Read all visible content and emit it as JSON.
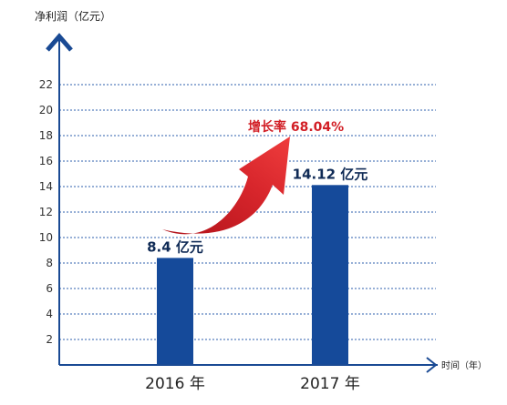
{
  "colors": {
    "axis": "#1a4a94",
    "bar": "#154a9a",
    "grid": "#2e5fae",
    "growth": "#d21f26",
    "label": "#0f2a55"
  },
  "chart_data": {
    "type": "bar",
    "ylabel": "净利润（亿元）",
    "xlabel": "时间（年）",
    "ylim": [
      0,
      24
    ],
    "yticks": [
      2,
      4,
      6,
      8,
      10,
      12,
      14,
      16,
      18,
      20,
      22
    ],
    "grid": true,
    "categories": [
      "2016 年",
      "2017 年"
    ],
    "values": [
      8.4,
      14.12
    ],
    "data_labels": [
      "8.4 亿元",
      "14.12 亿元"
    ],
    "annotation": "增长率 68.04%"
  }
}
